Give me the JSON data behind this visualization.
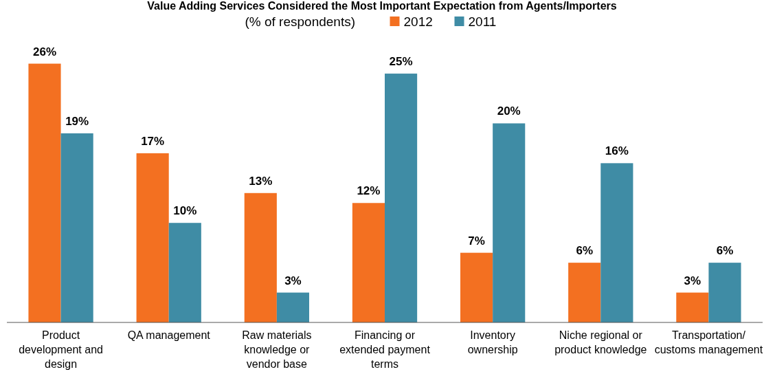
{
  "chart_data": {
    "type": "bar",
    "title": "Value Adding Services Considered the Most Important Expectation from Agents/Importers",
    "subtitle": "(% of respondents)",
    "categories": [
      "Product development and design",
      "QA management",
      "Raw materials knowledge or vendor base",
      "Financing or extended payment terms",
      "Inventory ownership",
      "Niche regional or product knowledge",
      "Transportation/ customs management"
    ],
    "series": [
      {
        "name": "2012",
        "color": "#f37021",
        "values": [
          26,
          17,
          13,
          12,
          7,
          6,
          3
        ],
        "value_labels": [
          "26%",
          "17%",
          "13%",
          "12%",
          "7%",
          "6%",
          "3%"
        ]
      },
      {
        "name": "2011",
        "color": "#3f8ca5",
        "values": [
          19,
          10,
          3,
          25,
          20,
          16,
          6
        ],
        "value_labels": [
          "19%",
          "10%",
          "3%",
          "25%",
          "20%",
          "16%",
          "6%"
        ]
      }
    ],
    "legend": "top",
    "grid": false
  }
}
